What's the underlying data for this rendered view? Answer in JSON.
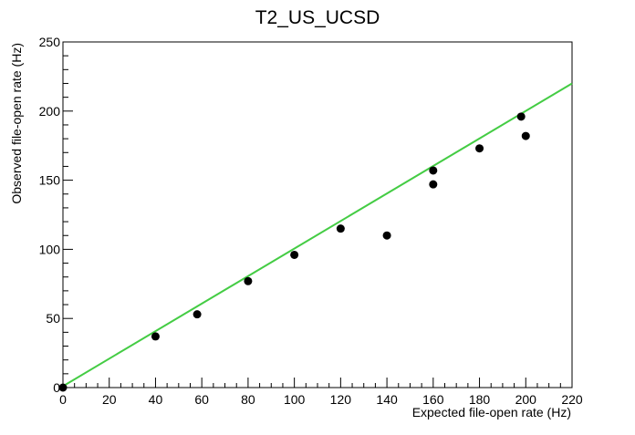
{
  "chart_data": {
    "type": "scatter",
    "title": "T2_US_UCSD",
    "xlabel": "Expected file-open rate (Hz)",
    "ylabel": "Observed file-open rate (Hz)",
    "xlim": [
      0,
      220
    ],
    "ylim": [
      0,
      250
    ],
    "x_ticks": [
      0,
      20,
      40,
      60,
      80,
      100,
      120,
      140,
      160,
      180,
      200,
      220
    ],
    "y_ticks": [
      0,
      50,
      100,
      150,
      200,
      250
    ],
    "grid": false,
    "legend": "none",
    "series": [
      {
        "kind": "points",
        "color": "#000000",
        "x": [
          0,
          40,
          58,
          80,
          100,
          120,
          140,
          160,
          160,
          180,
          198,
          200
        ],
        "y": [
          0,
          37,
          53,
          77,
          96,
          115,
          110,
          157,
          147,
          173,
          196,
          182
        ]
      },
      {
        "kind": "line",
        "color": "#44cc44",
        "x": [
          0,
          220
        ],
        "y": [
          1,
          220
        ]
      }
    ]
  }
}
